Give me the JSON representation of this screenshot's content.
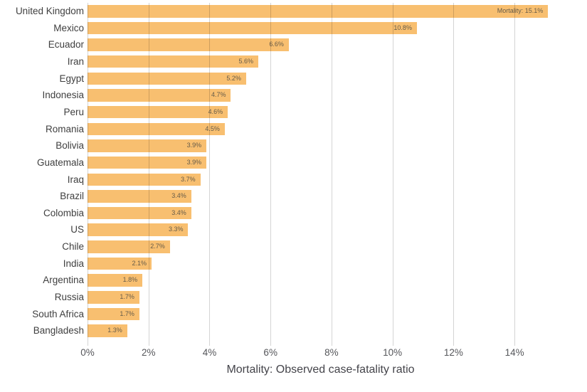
{
  "chart_data": {
    "type": "bar",
    "orientation": "horizontal",
    "title": "",
    "xlabel": "Mortality: Observed case-fatality ratio",
    "ylabel": "",
    "categories": [
      "United Kingdom",
      "Mexico",
      "Ecuador",
      "Iran",
      "Egypt",
      "Indonesia",
      "Peru",
      "Romania",
      "Bolivia",
      "Guatemala",
      "Iraq",
      "Brazil",
      "Colombia",
      "US",
      "Chile",
      "India",
      "Argentina",
      "Russia",
      "South Africa",
      "Bangladesh"
    ],
    "values": [
      15.1,
      10.8,
      6.6,
      5.6,
      5.2,
      4.7,
      4.6,
      4.5,
      3.9,
      3.9,
      3.7,
      3.4,
      3.4,
      3.3,
      2.7,
      2.1,
      1.8,
      1.7,
      1.7,
      1.3
    ],
    "bar_labels": [
      "Mortality: 15.1%",
      "10.8%",
      "6.6%",
      "5.6%",
      "5.2%",
      "4.7%",
      "4.6%",
      "4.5%",
      "3.9%",
      "3.9%",
      "3.7%",
      "3.4%",
      "3.4%",
      "3.3%",
      "2.7%",
      "2.1%",
      "1.8%",
      "1.7%",
      "1.7%",
      "1.3%"
    ],
    "x_ticks": [
      "0%",
      "2%",
      "4%",
      "6%",
      "8%",
      "10%",
      "12%",
      "14%"
    ],
    "x_tick_values": [
      0,
      2,
      4,
      6,
      8,
      10,
      12,
      14
    ],
    "xlim": [
      0,
      15.28
    ],
    "grid": true,
    "legend": "none",
    "colors": {
      "bar_fill": "#F8BF70",
      "bar_value_label": "#655B49",
      "category_label": "#3F3F3F",
      "x_tick_label": "#55565A",
      "axis_title": "#44444A",
      "gridline": "rgba(0,0,0,0.17)",
      "background": "#FFFFFF"
    }
  }
}
